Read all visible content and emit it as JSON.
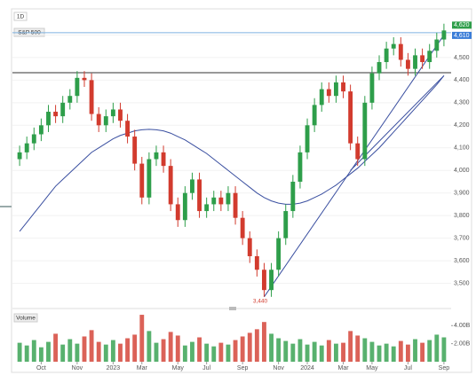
{
  "chart_data": {
    "type": "candlestick",
    "interval": "1D",
    "symbol": "S&P 500",
    "volume_title": "Volume",
    "low_label": "3,440",
    "xlim": [
      -1,
      60
    ],
    "xticks": [
      {
        "value": 3,
        "label": "Oct"
      },
      {
        "value": 8,
        "label": "Nov"
      },
      {
        "value": 13,
        "label": "2023"
      },
      {
        "value": 17,
        "label": "Mar"
      },
      {
        "value": 22,
        "label": "May"
      },
      {
        "value": 26,
        "label": "Jul"
      },
      {
        "value": 31,
        "label": "Sep"
      },
      {
        "value": 36,
        "label": "Nov"
      },
      {
        "value": 40,
        "label": "2024"
      },
      {
        "value": 45,
        "label": "Mar"
      },
      {
        "value": 49,
        "label": "May"
      },
      {
        "value": 54,
        "label": "Jul"
      },
      {
        "value": 59,
        "label": "Sep"
      }
    ],
    "ylim": [
      3400,
      4700
    ],
    "yticks": [
      {
        "value": 3500,
        "label": "3,500"
      },
      {
        "value": 3600,
        "label": "3,600"
      },
      {
        "value": 3700,
        "label": "3,700"
      },
      {
        "value": 3800,
        "label": "3,800"
      },
      {
        "value": 3900,
        "label": "3,900"
      },
      {
        "value": 4000,
        "label": "4,000"
      },
      {
        "value": 4100,
        "label": "4,100"
      },
      {
        "value": 4200,
        "label": "4,200"
      },
      {
        "value": 4300,
        "label": "4,300"
      },
      {
        "value": 4400,
        "label": "4,400"
      },
      {
        "value": 4500,
        "label": "4,500"
      },
      {
        "value": 4600,
        "label": "4,600"
      }
    ],
    "up_color": "#2e9e4a",
    "down_color": "#d23b2e",
    "open": [
      4050,
      4080,
      4120,
      4160,
      4200,
      4260,
      4240,
      4300,
      4330,
      4410,
      4400,
      4250,
      4200,
      4240,
      4270,
      4220,
      4150,
      4030,
      3880,
      4050,
      4080,
      4020,
      3850,
      3780,
      3900,
      3960,
      3820,
      3850,
      3880,
      3850,
      3900,
      3790,
      3700,
      3620,
      3560,
      3470,
      3560,
      3700,
      3820,
      3950,
      4080,
      4200,
      4290,
      4360,
      4330,
      4390,
      4350,
      4120,
      4050,
      4300,
      4430,
      4480,
      4540,
      4560,
      4490,
      4450,
      4510,
      4480,
      4530,
      4580
    ],
    "high": [
      4110,
      4150,
      4190,
      4230,
      4290,
      4290,
      4330,
      4360,
      4440,
      4440,
      4430,
      4280,
      4270,
      4300,
      4300,
      4250,
      4180,
      4060,
      4080,
      4110,
      4110,
      4050,
      3880,
      3930,
      3990,
      3990,
      3880,
      3910,
      3910,
      3930,
      3930,
      3820,
      3730,
      3650,
      3590,
      3590,
      3730,
      3850,
      3980,
      4110,
      4230,
      4320,
      4390,
      4390,
      4420,
      4420,
      4380,
      4150,
      4330,
      4460,
      4510,
      4570,
      4590,
      4590,
      4520,
      4540,
      4540,
      4560,
      4610,
      4650
    ],
    "low": [
      4020,
      4050,
      4090,
      4130,
      4170,
      4210,
      4210,
      4270,
      4300,
      4370,
      4220,
      4170,
      4170,
      4210,
      4190,
      4120,
      4000,
      3850,
      3850,
      4020,
      3990,
      3820,
      3750,
      3750,
      3870,
      3790,
      3790,
      3820,
      3820,
      3820,
      3760,
      3670,
      3590,
      3530,
      3440,
      3440,
      3530,
      3670,
      3790,
      3920,
      4050,
      4170,
      4260,
      4300,
      4300,
      4320,
      4090,
      4020,
      4020,
      4270,
      4400,
      4450,
      4510,
      4460,
      4420,
      4420,
      4450,
      4450,
      4500,
      4550
    ],
    "close": [
      4080,
      4120,
      4160,
      4200,
      4260,
      4240,
      4300,
      4330,
      4410,
      4400,
      4250,
      4200,
      4240,
      4270,
      4220,
      4150,
      4030,
      3880,
      4050,
      4080,
      4020,
      3850,
      3780,
      3900,
      3960,
      3820,
      3850,
      3880,
      3850,
      3900,
      3790,
      3700,
      3620,
      3560,
      3470,
      3560,
      3700,
      3820,
      3950,
      4080,
      4200,
      4290,
      4360,
      4330,
      4390,
      4350,
      4120,
      4050,
      4300,
      4430,
      4480,
      4540,
      4560,
      4490,
      4450,
      4510,
      4480,
      4530,
      4580,
      4620
    ],
    "ma": {
      "color": "#3a4fa0",
      "values": [
        3730,
        3770,
        3810,
        3850,
        3890,
        3930,
        3960,
        3990,
        4020,
        4050,
        4080,
        4100,
        4120,
        4140,
        4155,
        4165,
        4175,
        4180,
        4182,
        4180,
        4175,
        4165,
        4150,
        4135,
        4115,
        4095,
        4075,
        4050,
        4025,
        4000,
        3975,
        3950,
        3925,
        3900,
        3880,
        3865,
        3855,
        3850,
        3850,
        3855,
        3865,
        3880,
        3895,
        3915,
        3935,
        3960,
        3985,
        4010,
        4040,
        4070,
        4100,
        4135,
        4170,
        4205,
        4240,
        4275,
        4310,
        4345,
        4380,
        4420
      ]
    },
    "trendlines": [
      {
        "x": [
          34,
          59
        ],
        "y": [
          3440,
          4600
        ],
        "color": "#3a4fa0"
      },
      {
        "x": [
          46,
          59
        ],
        "y": [
          4000,
          4420
        ],
        "color": "#3a4fa0"
      }
    ],
    "levels": [
      {
        "value": 4610,
        "color": "#7fb2e0"
      },
      {
        "value": 4433,
        "color": "#333333"
      }
    ],
    "price_labels": [
      {
        "value": 4620,
        "label": "4,620",
        "color": "#2e9e4a"
      },
      {
        "value": 4610,
        "label": "4,610",
        "color": "#3b7dd8"
      }
    ],
    "volume": [
      2.1,
      1.8,
      2.4,
      1.6,
      2.2,
      3.1,
      1.9,
      2.5,
      2.0,
      2.8,
      3.5,
      2.2,
      1.9,
      2.4,
      2.0,
      2.6,
      3.0,
      5.2,
      3.4,
      2.1,
      2.5,
      3.3,
      2.9,
      1.8,
      2.2,
      2.7,
      2.0,
      1.7,
      2.1,
      1.9,
      2.4,
      2.8,
      3.2,
      3.6,
      4.4,
      3.1,
      2.6,
      2.3,
      2.0,
      2.5,
      1.9,
      2.2,
      1.8,
      2.4,
      2.0,
      2.1,
      3.4,
      2.9,
      2.6,
      2.2,
      1.8,
      2.0,
      1.7,
      2.3,
      1.9,
      2.5,
      2.1,
      2.4,
      3.0,
      2.7
    ],
    "volume_ylim": [
      0,
      5.5
    ],
    "volume_ticks": [
      {
        "value": 2,
        "label": "2.00B"
      },
      {
        "value": 4,
        "label": "4.00B"
      }
    ]
  }
}
